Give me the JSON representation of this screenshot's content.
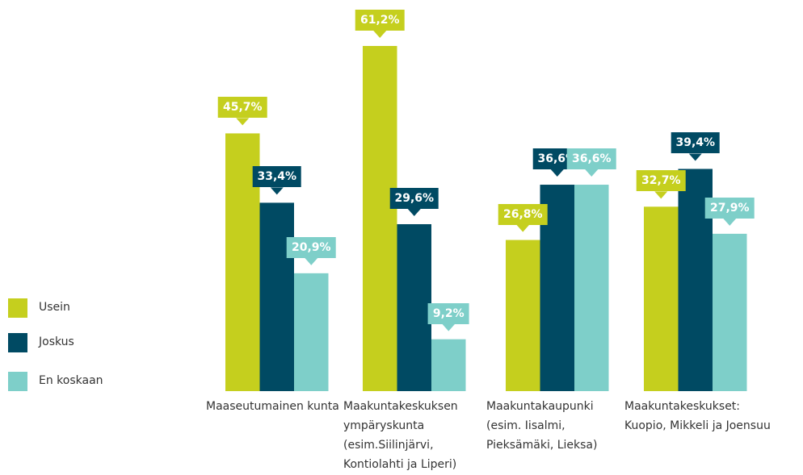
{
  "chart_data": {
    "type": "bar",
    "categories": [
      "Maaseutumainen kunta",
      "Maakuntakeskuksen\nympäryskunta\n(esim.Siilinjärvi,\nKontiolahti ja Liperi)",
      "Maakuntakaupunki\n(esim. Iisalmi,\nPieksämäki, Lieksa)",
      "Maakuntakeskukset:\nKuopio, Mikkeli ja Joensuu"
    ],
    "series": [
      {
        "name": "Usein",
        "color": "#c5cf1e",
        "values": [
          45.7,
          61.2,
          26.8,
          32.7
        ],
        "value_labels": [
          "45,7%",
          "61,2%",
          "26,8%",
          "32,7%"
        ]
      },
      {
        "name": "Joskus",
        "color": "#004a63",
        "values": [
          33.4,
          29.6,
          36.6,
          39.4
        ],
        "value_labels": [
          "33,4%",
          "29,6%",
          "36,6%",
          "39,4%"
        ]
      },
      {
        "name": "En koskaan",
        "color": "#7ecfc9",
        "values": [
          20.9,
          9.2,
          36.6,
          27.9
        ],
        "value_labels": [
          "20,9%",
          "9,2%",
          "36,6%",
          "27,9%"
        ]
      }
    ],
    "legend": "left"
  }
}
